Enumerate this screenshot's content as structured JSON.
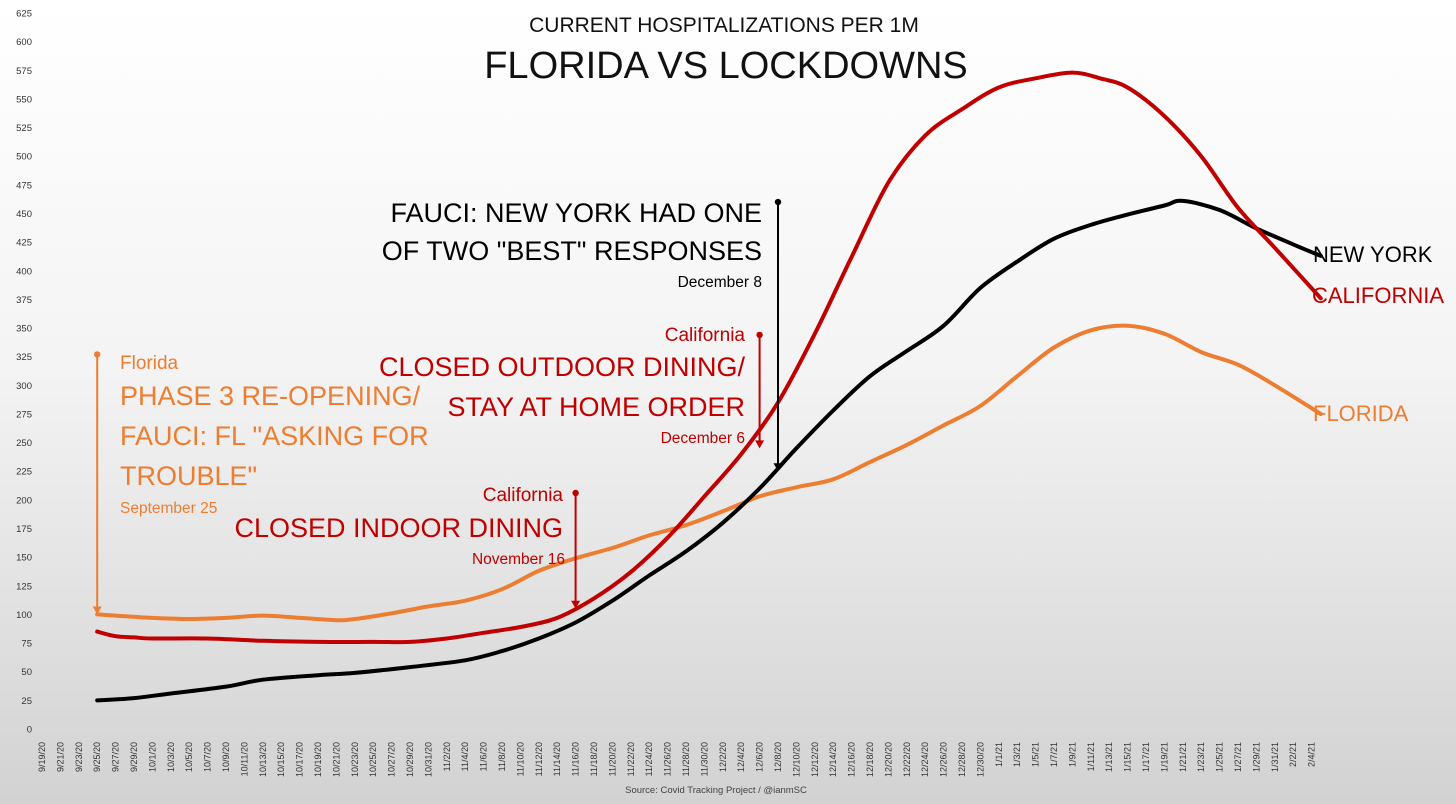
{
  "chart_data": {
    "type": "line",
    "subtitle": "CURRENT HOSPITALIZATIONS PER 1M",
    "title": "FLORIDA VS LOCKDOWNS",
    "source": "Source: Covid Tracking Project  / @ianmSC",
    "ylim": [
      0,
      625
    ],
    "yticks": [
      0,
      25,
      50,
      75,
      100,
      125,
      150,
      175,
      200,
      225,
      250,
      275,
      300,
      325,
      350,
      375,
      400,
      425,
      450,
      475,
      500,
      525,
      550,
      575,
      600,
      625
    ],
    "x_ticks": [
      "9/19/20",
      "9/21/20",
      "9/23/20",
      "9/25/20",
      "9/27/20",
      "9/29/20",
      "10/1/20",
      "10/3/20",
      "10/5/20",
      "10/7/20",
      "10/9/20",
      "10/11/20",
      "10/13/20",
      "10/15/20",
      "10/17/20",
      "10/19/20",
      "10/21/20",
      "10/23/20",
      "10/25/20",
      "10/27/20",
      "10/29/20",
      "10/31/20",
      "11/2/20",
      "11/4/20",
      "11/6/20",
      "11/8/20",
      "11/10/20",
      "11/12/20",
      "11/14/20",
      "11/16/20",
      "11/18/20",
      "11/20/20",
      "11/22/20",
      "11/24/20",
      "11/26/20",
      "11/28/20",
      "11/30/20",
      "12/2/20",
      "12/4/20",
      "12/6/20",
      "12/8/20",
      "12/10/20",
      "12/12/20",
      "12/14/20",
      "12/16/20",
      "12/18/20",
      "12/20/20",
      "12/22/20",
      "12/24/20",
      "12/26/20",
      "12/28/20",
      "12/30/20",
      "1/1/21",
      "1/3/21",
      "1/5/21",
      "1/7/21",
      "1/9/21",
      "1/11/21",
      "1/13/21",
      "1/15/21",
      "1/17/21",
      "1/19/21",
      "1/21/21",
      "1/23/21",
      "1/25/21",
      "1/27/21",
      "1/29/21",
      "1/31/21",
      "2/2/21",
      "2/4/21"
    ],
    "x_ticks_display": [
      "9/19/20",
      "9/21/20",
      "9/23/20",
      "9/25/20",
      "9/27/20",
      "9/29/20",
      "10/1/20",
      "10/3/20",
      "10/5/20",
      "10/7/20",
      "10/9/20",
      "10/11/20",
      "10/13/20",
      "10/15/20",
      "10/17/20",
      "10/19/20",
      "10/21/20",
      "10/23/20",
      "10/25/20",
      "10/27/20",
      "10/29/20",
      "10/31/20",
      "11/2/20",
      "11/4/20",
      "11/6/20",
      "11/8/20",
      "11/10/20",
      "11/12/20",
      "11/14/20",
      "11/16/20",
      "11/18/20",
      "11/20/20",
      "11/22/20",
      "11/24/20",
      "11/26/20",
      "11/28/20",
      "11/30/20",
      "12/2/20",
      "12/4/20",
      "12/6/20",
      "12/8/20",
      "12/10/20",
      "12/12/20",
      "12/14/20",
      "12/16/20",
      "12/18/20",
      "12/20/20",
      "12/22/20",
      "12/24/20",
      "12/26/20",
      "12/28/20",
      "12/30/20",
      "1/1/21",
      "1/3/21",
      "1/5/21",
      "1/7/21",
      "1/9/21",
      "1/11/21",
      "1/13/21",
      "1/15/21",
      "1/17/21",
      "1/19/21",
      "1/21/21",
      "1/23/21",
      "1/25/21",
      "1/27/21",
      "1/29/21",
      "1/31/21",
      "2/2/21",
      "2/4/21"
    ],
    "series": [
      {
        "name": "NEW YORK",
        "color": "#000000",
        "x": [
          "9/25/20",
          "9/29/20",
          "10/3/20",
          "10/9/20",
          "10/13/20",
          "10/19/20",
          "10/23/20",
          "10/29/20",
          "11/4/20",
          "11/8/20",
          "11/12/20",
          "11/16/20",
          "11/20/20",
          "11/24/20",
          "11/28/20",
          "12/2/20",
          "12/6/20",
          "12/10/20",
          "12/14/20",
          "12/18/20",
          "12/22/20",
          "12/26/20",
          "12/30/20",
          "1/3/21",
          "1/7/21",
          "1/11/21",
          "1/15/21",
          "1/19/21",
          "1/21/21",
          "1/25/21",
          "1/29/21",
          "2/2/21",
          "2/5/21"
        ],
        "values": [
          25,
          27,
          31,
          37,
          43,
          47,
          49,
          54,
          60,
          68,
          79,
          93,
          112,
          134,
          155,
          180,
          210,
          245,
          278,
          308,
          330,
          352,
          385,
          408,
          428,
          440,
          449,
          457,
          461,
          453,
          437,
          423,
          413
        ]
      },
      {
        "name": "CALIFORNIA",
        "color": "#c00000",
        "x": [
          "9/25/20",
          "9/27/20",
          "9/29/20",
          "10/1/20",
          "10/7/20",
          "10/13/20",
          "10/19/20",
          "10/25/20",
          "10/29/20",
          "11/2/20",
          "11/6/20",
          "11/10/20",
          "11/14/20",
          "11/18/20",
          "11/22/20",
          "11/26/20",
          "11/30/20",
          "12/4/20",
          "12/8/20",
          "12/12/20",
          "12/16/20",
          "12/20/20",
          "12/24/20",
          "12/28/20",
          "1/1/21",
          "1/5/21",
          "1/9/21",
          "1/12/21",
          "1/15/21",
          "1/19/21",
          "1/23/21",
          "1/27/21",
          "1/31/21",
          "2/5/21"
        ],
        "values": [
          85,
          81,
          80,
          79,
          79,
          77,
          76,
          76,
          76,
          79,
          84,
          89,
          97,
          114,
          137,
          167,
          203,
          240,
          285,
          345,
          412,
          477,
          518,
          541,
          560,
          568,
          573,
          568,
          560,
          535,
          500,
          455,
          420,
          376
        ]
      },
      {
        "name": "FLORIDA",
        "color": "#ed7d31",
        "x": [
          "9/25/20",
          "9/27/20",
          "10/1/20",
          "10/5/20",
          "10/9/20",
          "10/13/20",
          "10/17/20",
          "10/21/20",
          "10/23/20",
          "10/27/20",
          "10/31/20",
          "11/4/20",
          "11/8/20",
          "11/12/20",
          "11/16/20",
          "11/20/20",
          "11/24/20",
          "11/28/20",
          "12/2/20",
          "12/6/20",
          "12/10/20",
          "12/14/20",
          "12/18/20",
          "12/22/20",
          "12/26/20",
          "12/30/20",
          "1/3/21",
          "1/7/21",
          "1/11/21",
          "1/15/21",
          "1/19/21",
          "1/23/21",
          "1/27/21",
          "1/31/21",
          "2/5/21"
        ],
        "values": [
          100,
          99,
          97,
          96,
          97,
          99,
          97,
          95,
          96,
          101,
          107,
          112,
          122,
          138,
          149,
          158,
          169,
          178,
          190,
          203,
          211,
          218,
          233,
          248,
          265,
          282,
          308,
          333,
          348,
          352,
          345,
          329,
          318,
          300,
          275
        ]
      }
    ],
    "series_labels": [
      "NEW YORK",
      "CALIFORNIA",
      "FLORIDA"
    ],
    "annotations": [
      {
        "id": "florida",
        "color": "#ed7d31",
        "small": "Florida",
        "lines": [
          "PHASE 3 RE-OPENING/",
          "FAUCI: FL \"ASKING FOR",
          "TROUBLE\""
        ],
        "date": "September 25",
        "x": "9/25/20",
        "y_top": 327,
        "y_bottom": 100
      },
      {
        "id": "ca-indoor",
        "color": "#c00000",
        "small": "California",
        "lines": [
          "CLOSED INDOOR DINING"
        ],
        "date": "November 16",
        "x": "11/16/20",
        "y_top": 206,
        "y_bottom": 105
      },
      {
        "id": "ca-outdoor",
        "color": "#c00000",
        "small": "California",
        "lines": [
          "CLOSED OUTDOOR DINING/",
          "STAY AT HOME ORDER"
        ],
        "date": "December 6",
        "x": "12/6/20",
        "y_top": 344,
        "y_bottom": 245
      },
      {
        "id": "ny",
        "color": "#000000",
        "small": "",
        "lines": [
          "FAUCI: NEW YORK HAD ONE",
          "OF TWO \"BEST\" RESPONSES"
        ],
        "date": "December 8",
        "x": "12/8/20",
        "y_top": 460,
        "y_bottom": 225
      }
    ]
  }
}
